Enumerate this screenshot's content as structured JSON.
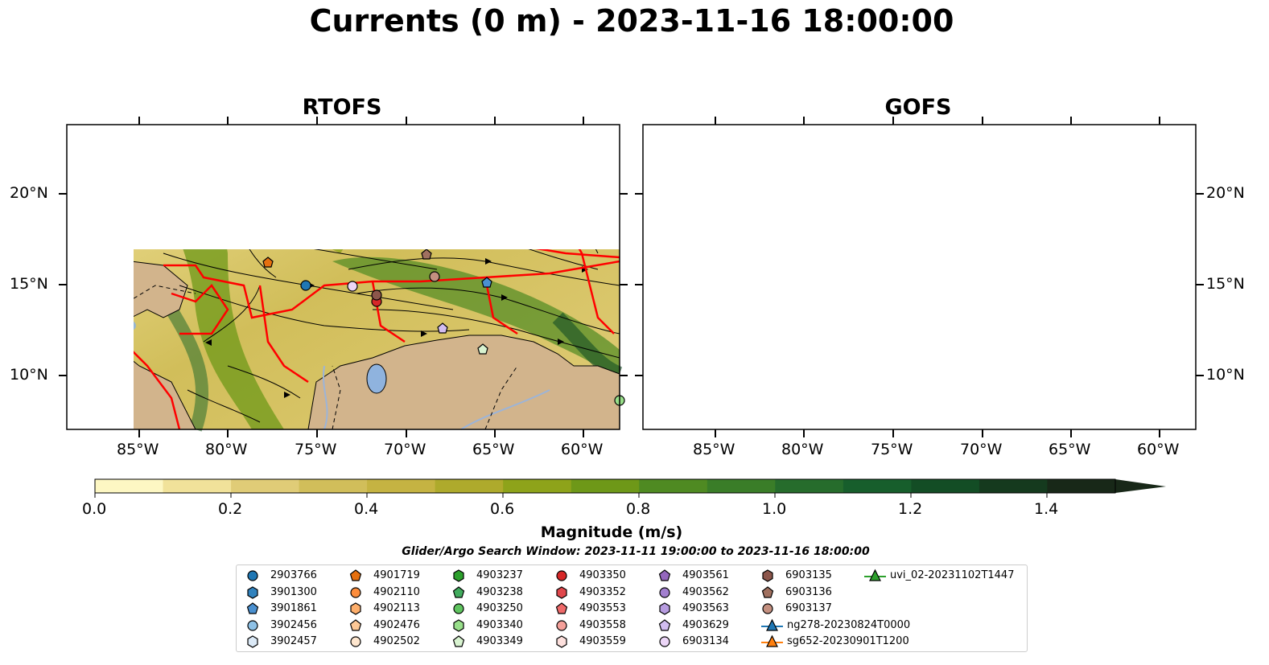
{
  "title": "Currents (0 m) - 2023-11-16 18:00:00",
  "panels": [
    {
      "title": "RTOFS"
    },
    {
      "title": "GOFS"
    }
  ],
  "axes": {
    "x_ticks": [
      "85°W",
      "80°W",
      "75°W",
      "70°W",
      "65°W",
      "60°W"
    ],
    "y_ticks": [
      "20°N",
      "15°N",
      "10°N"
    ]
  },
  "colorbar": {
    "label": "Magnitude (m/s)",
    "ticks": [
      "0.0",
      "0.2",
      "0.4",
      "0.6",
      "0.8",
      "1.0",
      "1.2",
      "1.4"
    ],
    "range": [
      0.0,
      1.5
    ],
    "extend": "max",
    "colors": [
      "#fdf7c3",
      "#f1e29a",
      "#e0cc77",
      "#d1be5a",
      "#c5b342",
      "#aeaa2c",
      "#8ea31a",
      "#6e9818",
      "#4f8a22",
      "#3a7d28",
      "#266c2c",
      "#175e2c",
      "#134d25",
      "#153a1e",
      "#182818"
    ]
  },
  "colors": {
    "land": "#d2b48c",
    "boundary": "#ff0000",
    "lake": "#8fb3de",
    "river": "#9cb4d8"
  },
  "search_window": "Glider/Argo Search Window: 2023-11-11 19:00:00 to 2023-11-16 18:00:00",
  "legend": [
    {
      "label": "2903766",
      "marker": "circle",
      "color": "#1f77b4"
    },
    {
      "label": "3901300",
      "marker": "hexagon",
      "color": "#3182bd"
    },
    {
      "label": "3901861",
      "marker": "pentagon",
      "color": "#4a90d0"
    },
    {
      "label": "3902456",
      "marker": "circle",
      "color": "#8ec1e6"
    },
    {
      "label": "3902457",
      "marker": "hexagon",
      "color": "#dbe9f6"
    },
    {
      "label": "4901719",
      "marker": "pentagon",
      "color": "#e6700f"
    },
    {
      "label": "4902110",
      "marker": "circle",
      "color": "#fd8d3c"
    },
    {
      "label": "4902113",
      "marker": "hexagon",
      "color": "#fdae6b"
    },
    {
      "label": "4902476",
      "marker": "pentagon",
      "color": "#fdc896"
    },
    {
      "label": "4902502",
      "marker": "circle",
      "color": "#fee6ce"
    },
    {
      "label": "4903237",
      "marker": "hexagon",
      "color": "#2ca02c"
    },
    {
      "label": "4903238",
      "marker": "pentagon",
      "color": "#41ab5d"
    },
    {
      "label": "4903250",
      "marker": "circle",
      "color": "#5fc45f"
    },
    {
      "label": "4903340",
      "marker": "hexagon",
      "color": "#98df8a"
    },
    {
      "label": "4903349",
      "marker": "pentagon",
      "color": "#d8f3d0"
    },
    {
      "label": "4903350",
      "marker": "circle",
      "color": "#d62728"
    },
    {
      "label": "4903352",
      "marker": "hexagon",
      "color": "#e0474c"
    },
    {
      "label": "4903553",
      "marker": "pentagon",
      "color": "#ef6a6a"
    },
    {
      "label": "4903558",
      "marker": "circle",
      "color": "#f5a09a"
    },
    {
      "label": "4903559",
      "marker": "hexagon",
      "color": "#fde0dd"
    },
    {
      "label": "4903561",
      "marker": "pentagon",
      "color": "#9467bd"
    },
    {
      "label": "4903562",
      "marker": "circle",
      "color": "#a27fcf"
    },
    {
      "label": "4903563",
      "marker": "hexagon",
      "color": "#b79ce0"
    },
    {
      "label": "4903629",
      "marker": "pentagon",
      "color": "#d2bdf0"
    },
    {
      "label": "6903134",
      "marker": "circle",
      "color": "#ecd6f7"
    },
    {
      "label": "6903135",
      "marker": "hexagon",
      "color": "#8c564b"
    },
    {
      "label": "6903136",
      "marker": "pentagon",
      "color": "#a0705f"
    },
    {
      "label": "6903137",
      "marker": "circle",
      "color": "#c49080"
    },
    {
      "label": "ng278-20230824T0000",
      "marker": "triangle-line",
      "color": "#1f77b4"
    },
    {
      "label": "sg652-20230901T1200",
      "marker": "triangle-line",
      "color": "#ff7f0e"
    },
    {
      "label": "uvi_02-20231102T1447",
      "marker": "triangle-line",
      "color": "#2ca02c"
    }
  ]
}
